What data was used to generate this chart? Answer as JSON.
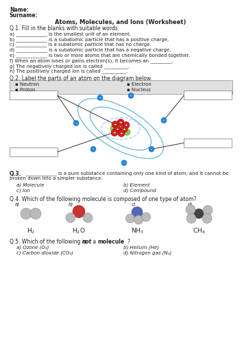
{
  "title": "Atoms, Molecules, and Ions (Worksheet)",
  "name_label": "Name:",
  "surname_label": "Surname:",
  "q1_title": "Q.1. Fill in the blanks with suitable words.",
  "q1_items": [
    "a) _____________ is the smallest unit of an element.",
    "b) _____________ is a subatomic particle that has a positive charge.",
    "c) _____________ is a subatomic particle that has no charge.",
    "d) _____________ is a subatomic particle that has a negative charge.",
    "e) _____________ is two or more atoms that are chemically bonded together.",
    "f) When an atom loses or gains electron(s), it becomes an _________.",
    "g) The negatively charged ion is called __________.",
    "h) The positively charged ion is called __________."
  ],
  "q2_title": "Q.2. Label the parts of an atom on the diagram below.",
  "q3_text": "Q.3. _____________ is a pure substance containing only one kind of atom, and it cannot be\nbroken down into a simpler substance.",
  "q3_options_left": [
    "a) Molecule",
    "c) Ion"
  ],
  "q3_options_right": [
    "b) Element",
    "d) Compound"
  ],
  "q4_title": "Q.4. Which of the following molecule is composed of one type of atom?",
  "q5_options": [
    "a) Ozone (O₃)",
    "b) Helium (He)",
    "c) Carbon dioxide (CO₂)",
    "d) Nitrogen gas (N₂)"
  ],
  "bg_color": "#ffffff",
  "text_color": "#222222"
}
